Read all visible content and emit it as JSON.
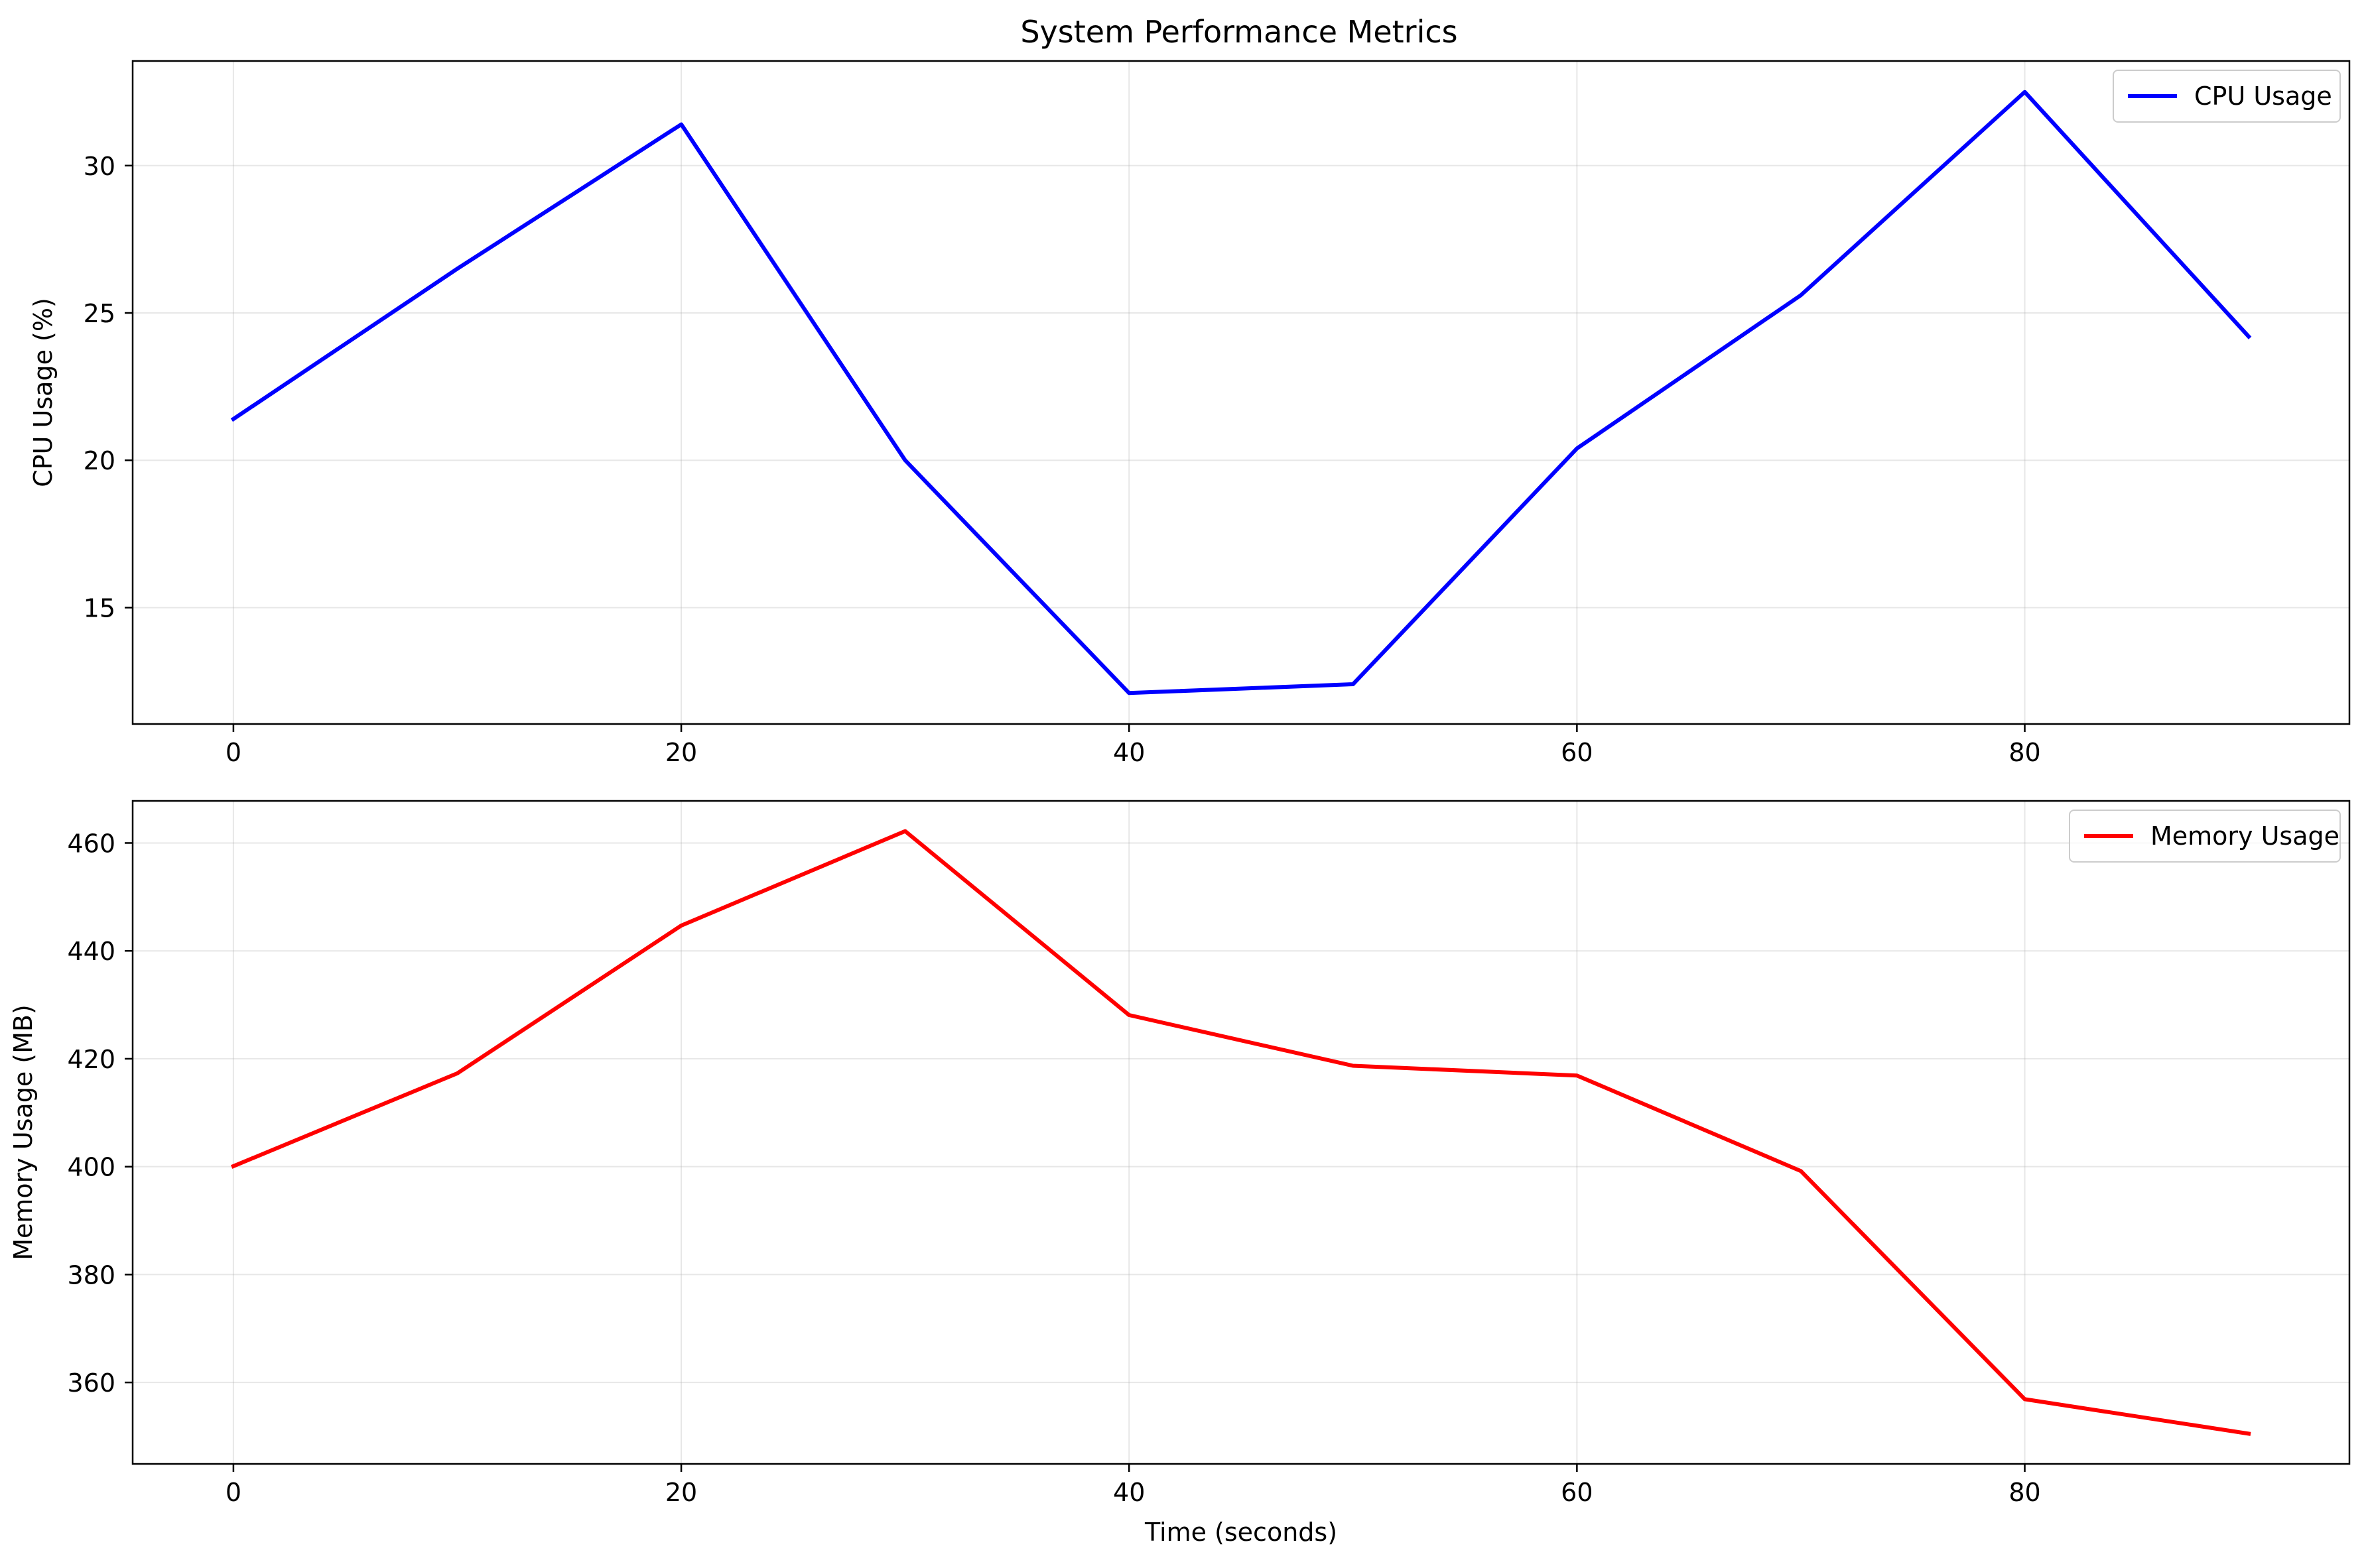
{
  "chart_data": [
    {
      "type": "line",
      "title": "System Performance Metrics",
      "xlabel": "",
      "ylabel": "CPU Usage (%)",
      "x": [
        0,
        10,
        20,
        30,
        40,
        50,
        60,
        70,
        80,
        90
      ],
      "xlim": [
        -4.5,
        94.5
      ],
      "ylim": [
        11.05,
        33.55
      ],
      "xticks": [
        0,
        20,
        40,
        60,
        80
      ],
      "yticks": [
        15,
        20,
        25,
        30
      ],
      "grid": true,
      "legend_position": "top-right",
      "series": [
        {
          "name": "CPU Usage",
          "color": "#0000ff",
          "values": [
            21.4,
            26.5,
            31.4,
            20.0,
            12.1,
            12.4,
            20.4,
            25.6,
            32.5,
            24.2
          ]
        }
      ]
    },
    {
      "type": "line",
      "title": "",
      "xlabel": "Time (seconds)",
      "ylabel": "Memory Usage (MB)",
      "x": [
        0,
        10,
        20,
        30,
        40,
        50,
        60,
        70,
        80,
        90
      ],
      "xlim": [
        -4.5,
        94.5
      ],
      "ylim": [
        344.9,
        467.8
      ],
      "xticks": [
        0,
        20,
        40,
        60,
        80
      ],
      "yticks": [
        360,
        380,
        400,
        420,
        440,
        460
      ],
      "grid": true,
      "legend_position": "top-right",
      "series": [
        {
          "name": "Memory Usage",
          "color": "#ff0000",
          "values": [
            400.1,
            417.3,
            444.7,
            462.2,
            428.1,
            418.7,
            416.9,
            399.2,
            356.9,
            350.5
          ]
        }
      ]
    }
  ]
}
